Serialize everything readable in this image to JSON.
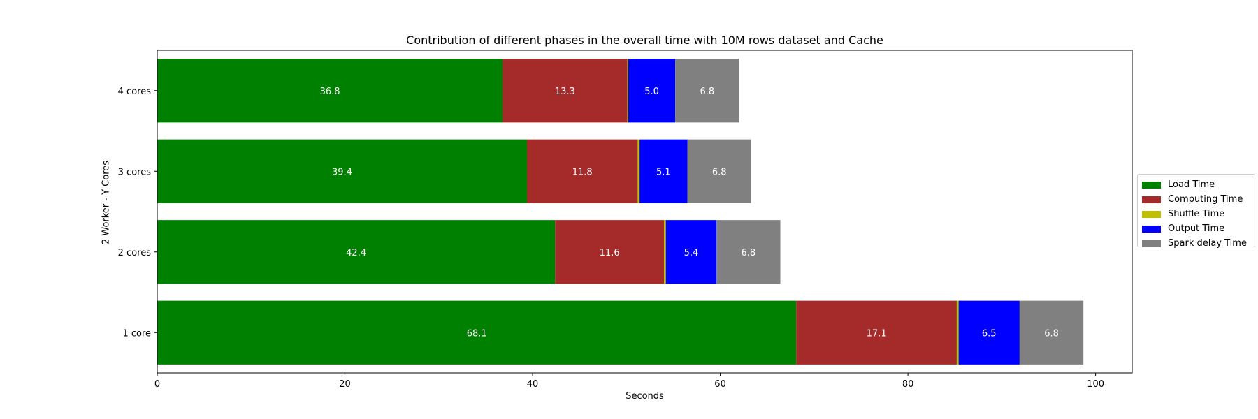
{
  "chart_data": {
    "type": "bar",
    "orientation": "horizontal",
    "stacked": true,
    "title": "Contribution of different phases in the overall time with 10M rows dataset and Cache",
    "xlabel": "Seconds",
    "ylabel": "2 Worker - Y Cores",
    "categories": [
      "1 core",
      "2 cores",
      "3 cores",
      "4 cores"
    ],
    "xlim": [
      0,
      103.9
    ],
    "xticks": [
      0,
      20,
      40,
      60,
      80,
      100
    ],
    "grid": false,
    "legend_position": "center-right",
    "series": [
      {
        "name": "Load Time",
        "color": "#008000",
        "values": [
          68.1,
          42.4,
          39.4,
          36.8
        ],
        "labels": [
          "68.1",
          "42.4",
          "39.4",
          "36.8"
        ]
      },
      {
        "name": "Computing Time",
        "color": "#a52a2a",
        "values": [
          17.1,
          11.6,
          11.8,
          13.3
        ],
        "labels": [
          "17.1",
          "11.6",
          "11.8",
          "13.3"
        ]
      },
      {
        "name": "Shuffle Time",
        "color": "#bfbf00",
        "values": [
          0.2,
          0.2,
          0.2,
          0.1
        ],
        "labels": [
          "",
          "",
          "",
          ""
        ]
      },
      {
        "name": "Output Time",
        "color": "#0000ff",
        "values": [
          6.5,
          5.4,
          5.1,
          5.0
        ],
        "labels": [
          "6.5",
          "5.4",
          "5.1",
          "5.0"
        ]
      },
      {
        "name": "Spark delay Time",
        "color": "#808080",
        "values": [
          6.8,
          6.8,
          6.8,
          6.8
        ],
        "labels": [
          "6.8",
          "6.8",
          "6.8",
          "6.8"
        ]
      }
    ]
  }
}
